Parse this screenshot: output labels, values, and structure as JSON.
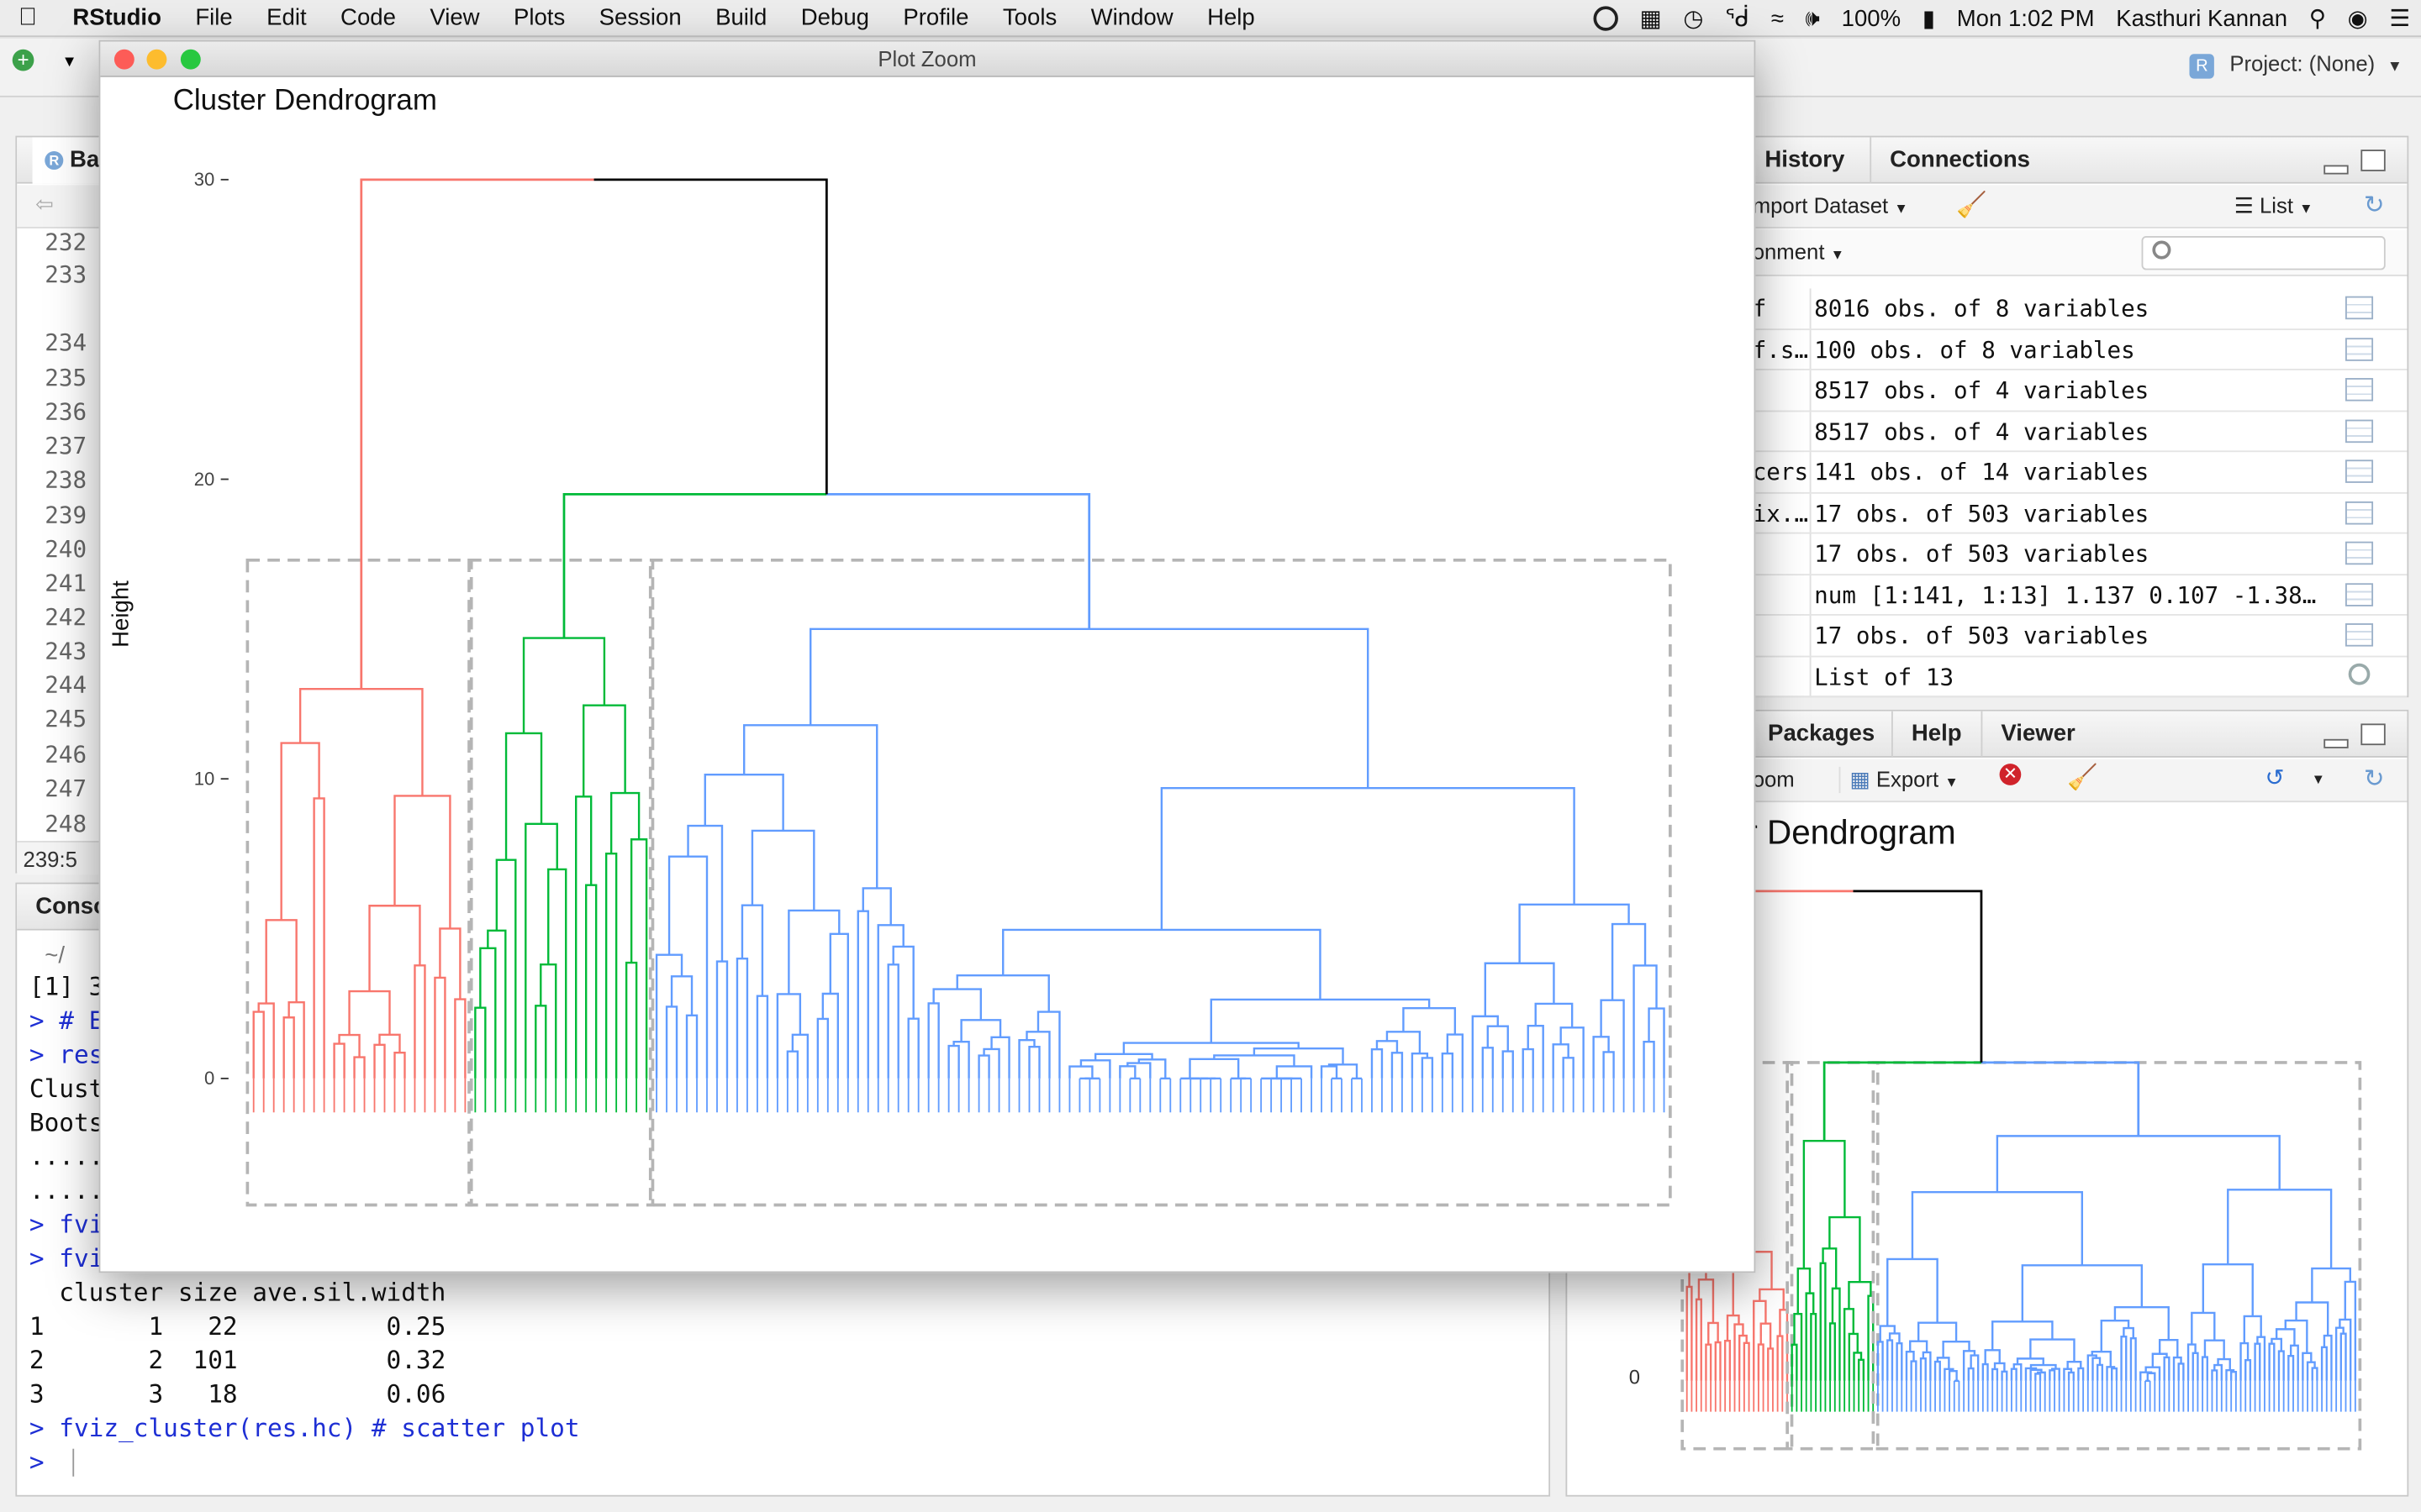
{
  "menubar": {
    "app": "RStudio",
    "items": [
      "File",
      "Edit",
      "Code",
      "View",
      "Plots",
      "Session",
      "Build",
      "Debug",
      "Profile",
      "Tools",
      "Window",
      "Help"
    ],
    "battery": "100%",
    "clock": "Mon 1:02 PM",
    "user": "Kasthuri Kannan"
  },
  "toolbar": {
    "project": "Project: (None)"
  },
  "source": {
    "tab": "Ba",
    "line_numbers": [
      "232",
      "233",
      "234",
      "235",
      "236",
      "237",
      "238",
      "239",
      "240",
      "241",
      "242",
      "243",
      "244",
      "245",
      "246",
      "247",
      "248"
    ],
    "status": "239:5"
  },
  "console": {
    "tab": "Conso",
    "path": "~/",
    "lines": [
      {
        "text": "[1] 3",
        "cmd": false
      },
      {
        "text": "> # E",
        "cmd": true
      },
      {
        "text": "> res",
        "cmd": true
      },
      {
        "text": "Clust",
        "cmd": false
      },
      {
        "text": "Boots",
        "cmd": false
      },
      {
        "text": ".....",
        "cmd": false
      },
      {
        "text": ".....",
        "cmd": false
      },
      {
        "text": "> fvi",
        "cmd": true
      },
      {
        "text": "> fvi",
        "cmd": true
      },
      {
        "text": "  cluster size ave.sil.width",
        "cmd": false
      },
      {
        "text": "1       1   22          0.25",
        "cmd": false
      },
      {
        "text": "2       2  101          0.32",
        "cmd": false
      },
      {
        "text": "3       3   18          0.06",
        "cmd": false
      },
      {
        "text": "> fviz_cluster(res.hc) # scatter plot",
        "cmd": true
      },
      {
        "text": "> ",
        "cmd": true
      }
    ]
  },
  "environment": {
    "tabs": [
      "History",
      "Connections"
    ],
    "import_label": "mport Dataset",
    "list_label": "List",
    "env_label": "onment",
    "rows": [
      {
        "name": "f",
        "value": "8016 obs. of 8 variables",
        "icon": "grid-icon"
      },
      {
        "name": "f.s…",
        "value": "100 obs. of 8 variables",
        "icon": "grid-icon"
      },
      {
        "name": "",
        "value": "8517 obs. of 4 variables",
        "icon": "grid-icon"
      },
      {
        "name": "",
        "value": "8517 obs. of 4 variables",
        "icon": "grid-icon"
      },
      {
        "name": "cers",
        "value": "141 obs. of 14 variables",
        "icon": "grid-icon"
      },
      {
        "name": "ix.…",
        "value": "17 obs. of 503 variables",
        "icon": "grid-icon"
      },
      {
        "name": "",
        "value": "17 obs. of 503 variables",
        "icon": "grid-icon"
      },
      {
        "name": "",
        "value": "num [1:141, 1:13] 1.137 0.107 -1.38…",
        "icon": "grid-icon"
      },
      {
        "name": "",
        "value": "17 obs. of 503 variables",
        "icon": "grid-icon"
      },
      {
        "name": "",
        "value": "List of 13",
        "icon": "search-icon"
      }
    ]
  },
  "files": {
    "tabs": [
      "Packages",
      "Help",
      "Viewer"
    ],
    "zoom_label": "oom",
    "export_label": "Export",
    "plot_title": "r Dendrogram",
    "ytick": "0"
  },
  "zoom_window": {
    "title": "Plot Zoom",
    "plot_title": "Cluster Dendrogram",
    "ylabel": "Height"
  },
  "chart_data": {
    "type": "dendrogram",
    "title": "Cluster Dendrogram",
    "ylabel": "Height",
    "yticks": [
      0,
      10,
      20,
      30
    ],
    "ylim": [
      0,
      31
    ],
    "clusters": [
      {
        "id": 1,
        "size": 22,
        "color": "#f8766d",
        "merge_height": 13
      },
      {
        "id": 2,
        "size": 101,
        "color": "#619cff",
        "merge_height": 15
      },
      {
        "id": 3,
        "size": 18,
        "color": "#00ba38",
        "merge_height": 14.7
      }
    ],
    "merges": [
      {
        "clusters": [
          3,
          2
        ],
        "height": 19.5
      },
      {
        "clusters": [
          1,
          "3+2"
        ],
        "height": 30
      }
    ],
    "leaf_count": 141
  }
}
